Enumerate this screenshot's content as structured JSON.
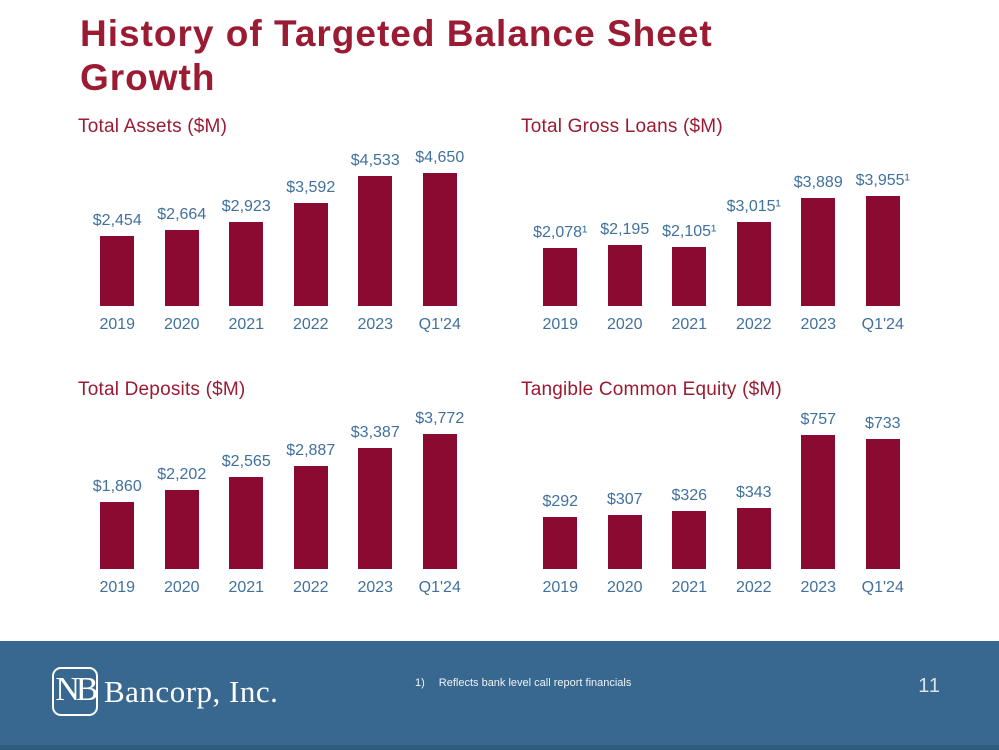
{
  "slide": {
    "title_line1": "History of Targeted Balance Sheet",
    "title_line2": "Growth",
    "page_number": "11"
  },
  "footer": {
    "logo_monogram": "NB",
    "logo_text": "Bancorp, Inc.",
    "footnote_marker": "1)",
    "footnote_text": "Reflects bank level call report financials"
  },
  "colors": {
    "accent_maroon": "#9B1B33",
    "bar_maroon": "#8A0A32",
    "label_blue": "#40719E",
    "footer_blue": "#38688F"
  },
  "chart_data": [
    {
      "type": "bar",
      "title": "Total Assets ($M)",
      "categories": [
        "2019",
        "2020",
        "2021",
        "2022",
        "2023",
        "Q1'24"
      ],
      "values": [
        2454,
        2664,
        2923,
        3592,
        4533,
        4650
      ],
      "labels": [
        "$2,454",
        "$2,664",
        "$2,923",
        "$3,592",
        "$4,533",
        "$4,650"
      ],
      "ylim": [
        0,
        4650
      ],
      "grid": false,
      "legend": "none"
    },
    {
      "type": "bar",
      "title": "Total Gross Loans ($M)",
      "categories": [
        "2019",
        "2020",
        "2021",
        "2022",
        "2023",
        "Q1'24"
      ],
      "values": [
        2078,
        2195,
        2105,
        3015,
        3889,
        3955
      ],
      "labels": [
        "$2,078¹",
        "$2,195",
        "$2,105¹",
        "$3,015¹",
        "$3,889",
        "$3,955¹"
      ],
      "ylim": [
        0,
        3955
      ],
      "grid": false,
      "legend": "none"
    },
    {
      "type": "bar",
      "title": "Total Deposits ($M)",
      "categories": [
        "2019",
        "2020",
        "2021",
        "2022",
        "2023",
        "Q1'24"
      ],
      "values": [
        1860,
        2202,
        2565,
        2887,
        3387,
        3772
      ],
      "labels": [
        "$1,860",
        "$2,202",
        "$2,565",
        "$2,887",
        "$3,387",
        "$3,772"
      ],
      "ylim": [
        0,
        3772
      ],
      "grid": false,
      "legend": "none"
    },
    {
      "type": "bar",
      "title": "Tangible Common Equity ($M)",
      "categories": [
        "2019",
        "2020",
        "2021",
        "2022",
        "2023",
        "Q1'24"
      ],
      "values": [
        292,
        307,
        326,
        343,
        757,
        733
      ],
      "labels": [
        "$292",
        "$307",
        "$326",
        "$343",
        "$757",
        "$733"
      ],
      "ylim": [
        0,
        757
      ],
      "grid": false,
      "legend": "none"
    }
  ]
}
